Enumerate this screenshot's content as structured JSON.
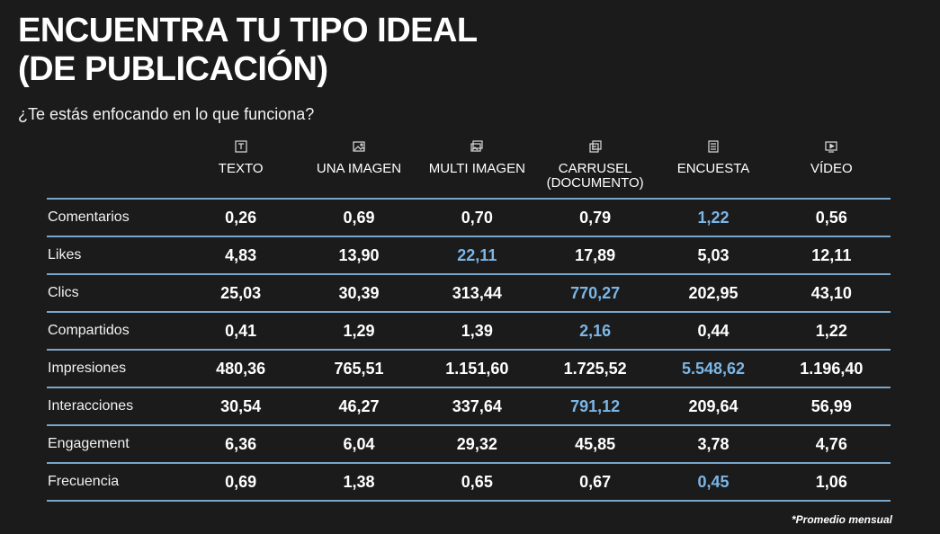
{
  "title_line1": "ENCUENTRA TU TIPO IDEAL",
  "title_line2": "(DE PUBLICACIÓN)",
  "subtitle": "¿Te estás enfocando en lo que funciona?",
  "highlight_color": "#7cb6e6",
  "rule_color": "#7aa6c9",
  "columns": [
    {
      "label": "TEXTO",
      "icon": "text-icon"
    },
    {
      "label": "UNA IMAGEN",
      "icon": "image-icon"
    },
    {
      "label": "MULTI IMAGEN",
      "icon": "multi-image-icon"
    },
    {
      "label": "CARRUSEL\n(DOCUMENTO)",
      "icon": "carousel-icon"
    },
    {
      "label": "ENCUESTA",
      "icon": "poll-icon"
    },
    {
      "label": "VÍDEO",
      "icon": "video-icon"
    }
  ],
  "rows": [
    {
      "label": "Comentarios",
      "values": [
        "0,26",
        "0,69",
        "0,70",
        "0,79",
        "1,22",
        "0,56"
      ],
      "highlight": 4
    },
    {
      "label": "Likes",
      "values": [
        "4,83",
        "13,90",
        "22,11",
        "17,89",
        "5,03",
        "12,11"
      ],
      "highlight": 2
    },
    {
      "label": "Clics",
      "values": [
        "25,03",
        "30,39",
        "313,44",
        "770,27",
        "202,95",
        "43,10"
      ],
      "highlight": 3
    },
    {
      "label": "Compartidos",
      "values": [
        "0,41",
        "1,29",
        "1,39",
        "2,16",
        "0,44",
        "1,22"
      ],
      "highlight": 3
    },
    {
      "label": "Impresiones",
      "values": [
        "480,36",
        "765,51",
        "1.151,60",
        "1.725,52",
        "5.548,62",
        "1.196,40"
      ],
      "highlight": 4
    },
    {
      "label": "Interacciones",
      "values": [
        "30,54",
        "46,27",
        "337,64",
        "791,12",
        "209,64",
        "56,99"
      ],
      "highlight": 3
    },
    {
      "label": "Engagement",
      "values": [
        "6,36",
        "6,04",
        "29,32",
        "45,85",
        "3,78",
        "4,76"
      ],
      "highlight": -1
    },
    {
      "label": "Frecuencia",
      "values": [
        "0,69",
        "1,38",
        "0,65",
        "0,67",
        "0,45",
        "1,06"
      ],
      "highlight": 4
    }
  ],
  "footnote": "*Promedio mensual"
}
